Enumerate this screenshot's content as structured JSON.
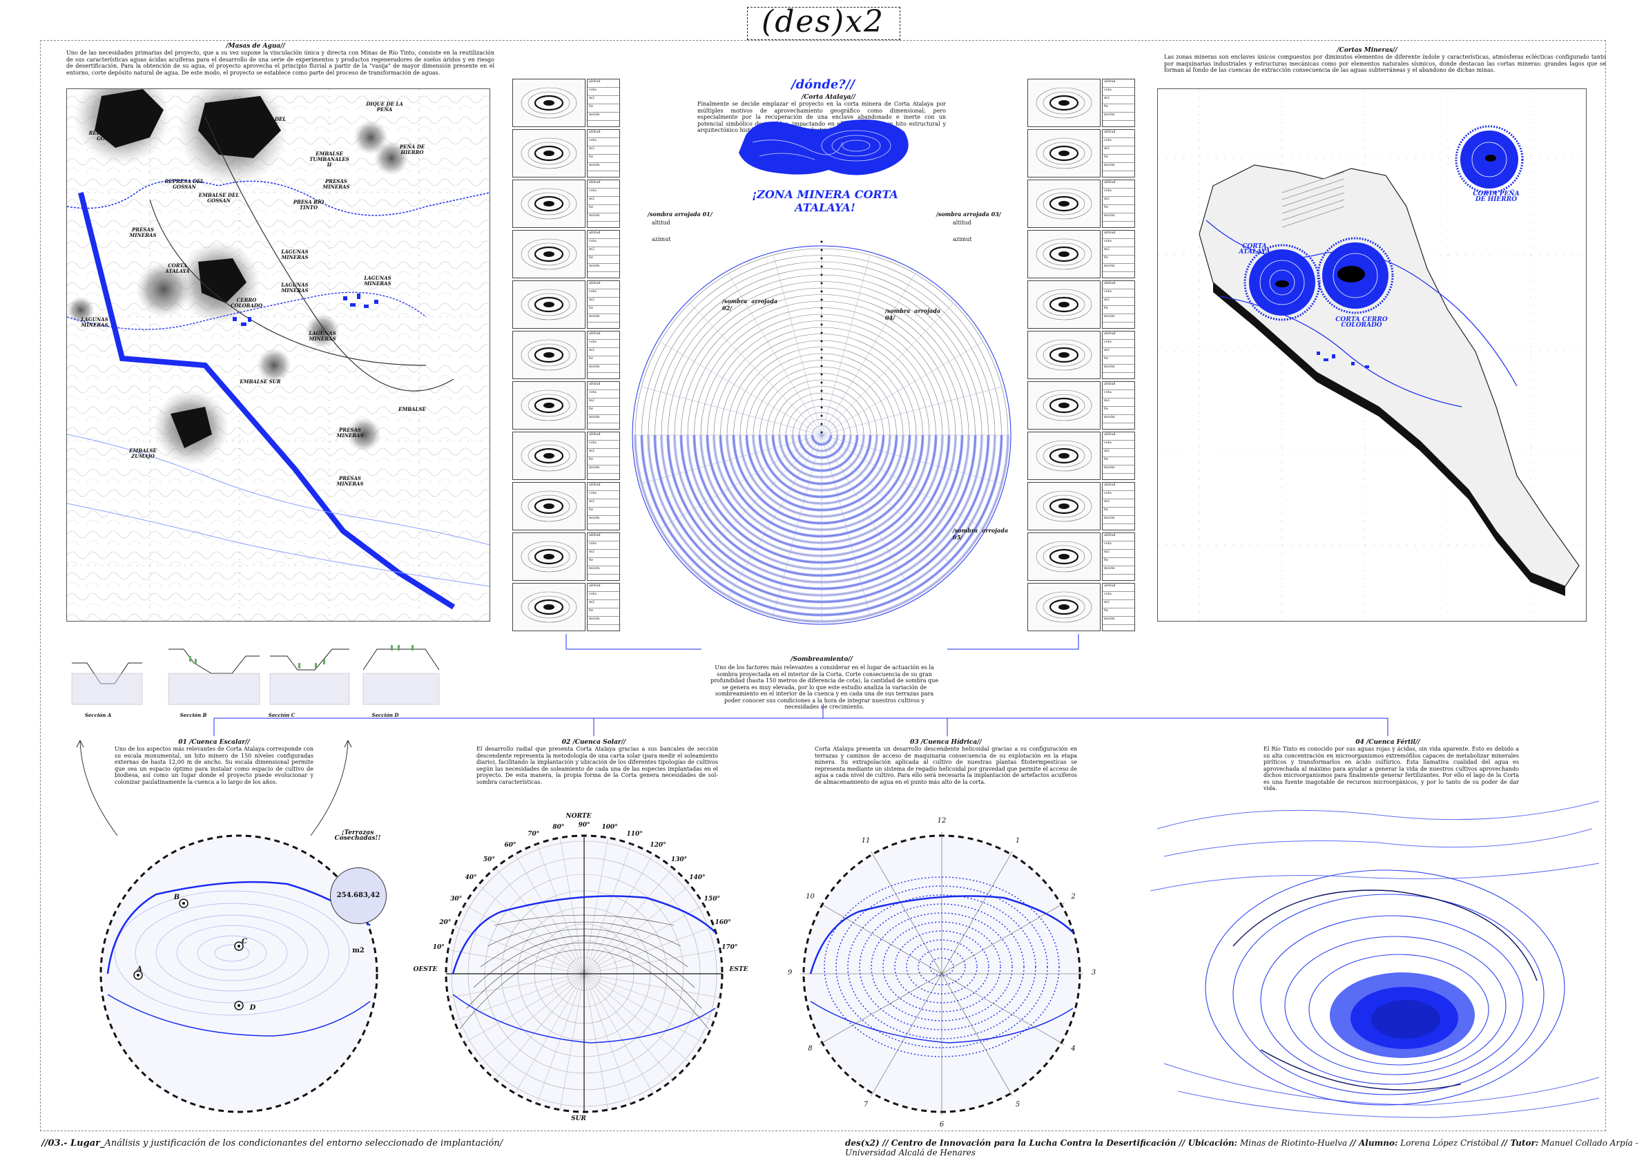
{
  "header": {
    "title": "(des)x2",
    "donde": "/dónde?//"
  },
  "colors": {
    "accent": "#1a2cf0",
    "ink": "#111111",
    "hatch": "#888888"
  },
  "masas_agua": {
    "title": "/Masas de Agua//",
    "text": "Uno de las necesidades primarias del proyecto, que a su vez supone la vinculación única y directa con Minas de Río Tinto, consiste en la reutilización de sus características aguas ácidas acuíferas para el desarrollo de una serie de experimentos y productos regeneradores de suelos áridos y en riesgo de desertificación. Para la obtención de su agua, el proyecto aprovecha el principio fluvial a partir de la \"vasija\" de mayor dimensión presente en el entorno, corte depósito natural de agua. De este modo, el proyecto se establece como parte del proceso de transformación de aguas.",
    "labels": [
      "EMBALSE DEL GOSSAN",
      "DIQUE DE LA PEÑA",
      "REPRESA DEL GOSSAN",
      "EMBALSE TUMBANALES II",
      "PEÑA DE HIERRO",
      "REPRESA DEL GOSSAN",
      "EMBALSE DEL GOSSAN",
      "PRESAS MINERAS",
      "PRESA RÍO TINTO",
      "PRESAS MINERAS",
      "CORTA ATALAYA",
      "LAGUNAS MINERAS",
      "LAGUNAS MINERAS",
      "CERRO COLORADO",
      "LAGUNAS MINERAS",
      "LAGUNAS MINERAS",
      "LAGUNAS MINERAS",
      "EMBALSE SUR",
      "EMBALSE ZUMAJO",
      "PRESAS MINERAS",
      "EMBALSE",
      "PRESAS MINERAS"
    ]
  },
  "corta_atalaya": {
    "title": "/Corta Atalaya//",
    "text": "Finalmente se decide emplazar el proyecto en la corta minera de Corta Atalaya por múltiples motivos de aprovechamiento geográfico como dimensional; pero especialmente por la recuperación de una enclave abandonado e inerte con un potencial simbólico destacables, impactando en el terreno como un hito estructural y arquitectónico histórico de la historia industrial del lugar.",
    "headline": "¡ZONA MINERA CORTA ATALAYA!"
  },
  "sombra": {
    "left_label": "/sombra arrojada 01/",
    "right_label": "/sombra arrojada 03/",
    "left_items": [
      "altitud",
      "azimut"
    ],
    "right_items": [
      "altitud",
      "azimut"
    ],
    "inner_left": "/sombra arrojada 02/",
    "inner_right": "/sombra arrojada 04/",
    "bottom_label": "/sombra arrojada 05/",
    "title": "/Sombreamiento//",
    "text": "Uno de los factores más relevantes a considerar en el lugar de actuación es la sombra proyectada en el interior de la Corta. Corte consecuencia de su gran profundidad (hasta 150 metros de diferencia de cota), la cantidad de sombra que se genera es muy elevada, por lo que este estudio analiza la variación de sombreamiento en el interior de la cuenca y en cada una de sus terrazas para poder conocer sus condiciones a la hora de integrar nuestros cultivos y necesidades de crecimiento."
  },
  "thumb_table": {
    "rows": [
      "altitud",
      "cota",
      "m2",
      "fw",
      "m/s/m"
    ]
  },
  "cortas_mineras": {
    "title": "/Cortas Mineras//",
    "text": "Las zonas mineras son enclaves únicos compuestos por diminutos elementos de diferente índole y características, atmósferas eclécticas configurado tanto por maquinarias industriales y estructuras mecánicas como por elementos naturales sísmicos, donde destacan las cortas mineras: grandes lagos que se forman al fondo de las cuencas de extracción consecuencia de las aguas subterráneas y el abandono de dichas minas.",
    "labels": [
      "CORTA ATALAYA",
      "CORTA CERRO COLORADO",
      "CORTA PEÑA DE HIERRO"
    ]
  },
  "secciones": [
    "Sección A",
    "Sección B",
    "Sección C",
    "Sección D"
  ],
  "cuencas": [
    {
      "title": "01 /Cuenca Escalar//",
      "text": "Uno de los aspectos más relevantes de Corta Atalaya corresponde con su escala monumental, un hito minero de 150 niveles configuradas externas de hasta 12,00 m de ancho. Su escala dimensional permite que sea un espacio óptimo para instalar como espacio de cultivo de biodiesa, así como un lugar donde el proyecto puede evolucionar y colonizar paulatinamente la cuenca a lo largo de los años.",
      "badge_title": "¡Terrazas Cosechadas!!",
      "badge_value": "254.683,42 m2",
      "points": [
        "A",
        "B",
        "C",
        "D"
      ]
    },
    {
      "title": "02 /Cuenca Solar//",
      "text": "El desarrollo radial que presenta Corta Atalaya gracias a sus bancales de sección descendente representa la metodología de una carta solar (para medir el soleamiento diario), facilitando la implantación y ubicación de los diferentes tipologías de cultivos según las necesidades de soleamiento de cada una de las especies implantadas en el proyecto. De esta manera, la propia forma de la Corta genera necesidades de sol-sombra características.",
      "compass": [
        "NORTE",
        "SUR",
        "ESTE",
        "OESTE"
      ]
    },
    {
      "title": "03 /Cuenca Hídrica//",
      "text": "Corta Atalaya presenta un desarrollo descendente helicoidal gracias a su configuración en terrazas y caminos de acceso de maquinaria consecuencia de su explotación en la etapa minera. Su extrapolación aplicada al cultivo de nuestras plantas fitotermpestícas se representa mediante un sistema de regadío helicoidal por gravedad que permite el acceso de agua a cada nivel de cultivo. Para ello será necesaria la implantación de artefactos acuíferos de almacenamiento de agua en el punto más alto de la corta.",
      "clock": [
        "1",
        "2",
        "3",
        "4",
        "5",
        "6",
        "7",
        "8",
        "9",
        "10",
        "11",
        "12"
      ]
    },
    {
      "title": "04 /Cuenca Fértil//",
      "text": "El Río Tinto es conocido por sus aguas rojas y ácidas, sin vida aparente. Esto es debido a su alta concentración en microorganismos extremófilos capaces de metabolizar minerales piríticos y transformarlos en ácido sulfúrico. Esta llamativa cualidad del agua es aprovechada al máximo para ayudar a generar la vida de nuestros cultivos aprovechando dichos microorganismos para finalmente generar fertilizantes. Por ello el lago de la Corta es una fuente inagotable de recursos microorgánicos, y por lo tanto de su poder de dar vida."
    }
  ],
  "solar_angles": [
    "10°",
    "20°",
    "30°",
    "40°",
    "50°",
    "60°",
    "70°",
    "80°",
    "90°",
    "100°",
    "110°",
    "120°",
    "130°",
    "140°",
    "150°",
    "160°",
    "170°"
  ],
  "footer": {
    "left_bold": "//03.- Lugar_",
    "left_text": "Análisis y justificación de los condicionantes del entorno seleccionado de implantación/",
    "right_bold": "des(x2) // Centro de Innovación para la Lucha Contra la Desertificación // Ubicación:",
    "right_loc": " Minas de Riotinto-Huelva ",
    "right_alumno_lbl": "// Alumno:",
    "right_alumno": " Lorena López Cristóbal ",
    "right_tutor_lbl": "// Tutor:",
    "right_tutor": " Manuel Collado Arpía - Universidad Alcalá de Henares"
  }
}
